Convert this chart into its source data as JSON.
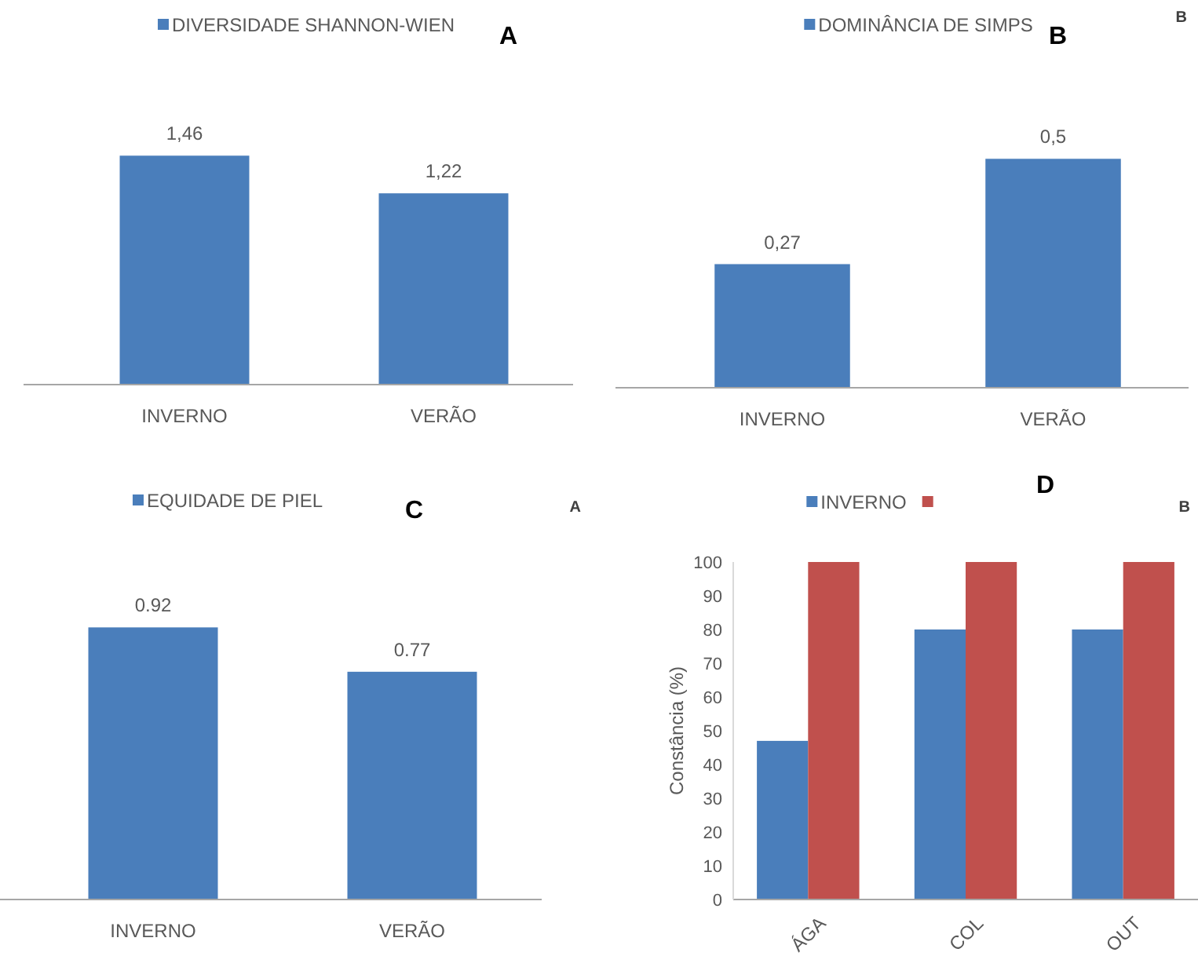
{
  "chart_data": [
    {
      "type": "bar",
      "title": "A",
      "categories": [
        "INVERNO",
        "VERÃO"
      ],
      "series": [
        {
          "name": "DIVERSIDADE SHANNON-WIEN",
          "color": "#4a7ebb",
          "values": [
            1.46,
            1.22
          ],
          "value_labels": [
            "1,46",
            "1,22"
          ]
        }
      ],
      "tick_labels": "x",
      "legend": "top"
    },
    {
      "type": "bar",
      "title": "B",
      "categories": [
        "INVERNO",
        "VERÃO"
      ],
      "series": [
        {
          "name": "DOMINÂNCIA DE SIMPS",
          "color": "#4a7ebb",
          "values": [
            0.27,
            0.5
          ],
          "value_labels": [
            "0,27",
            "0,5"
          ]
        }
      ],
      "tick_labels": "x",
      "legend": "top",
      "annotations": [
        "B"
      ]
    },
    {
      "type": "bar",
      "title": "C",
      "categories": [
        "INVERNO",
        "VERÃO"
      ],
      "series": [
        {
          "name": "EQUIDADE DE PIEL",
          "color": "#4a7ebb",
          "values": [
            0.92,
            0.77
          ],
          "value_labels": [
            "0.92",
            "0.77"
          ]
        }
      ],
      "tick_labels": "x",
      "legend": "top",
      "annotations": [
        "A"
      ]
    },
    {
      "type": "bar",
      "title": "D",
      "categories": [
        "ÁGA",
        "COL",
        "OUT"
      ],
      "ylabel": "Constância (%)",
      "series": [
        {
          "name": "INVERNO",
          "color": "#4a7ebb",
          "values": [
            47,
            80,
            80
          ]
        },
        {
          "color": "#c0504d",
          "values": [
            100,
            100,
            100
          ]
        }
      ],
      "ylim": [
        0,
        100
      ],
      "yticks": [
        0,
        10,
        20,
        30,
        40,
        50,
        60,
        70,
        80,
        90,
        100
      ],
      "legend": "top",
      "annotations": [
        "B"
      ]
    }
  ]
}
